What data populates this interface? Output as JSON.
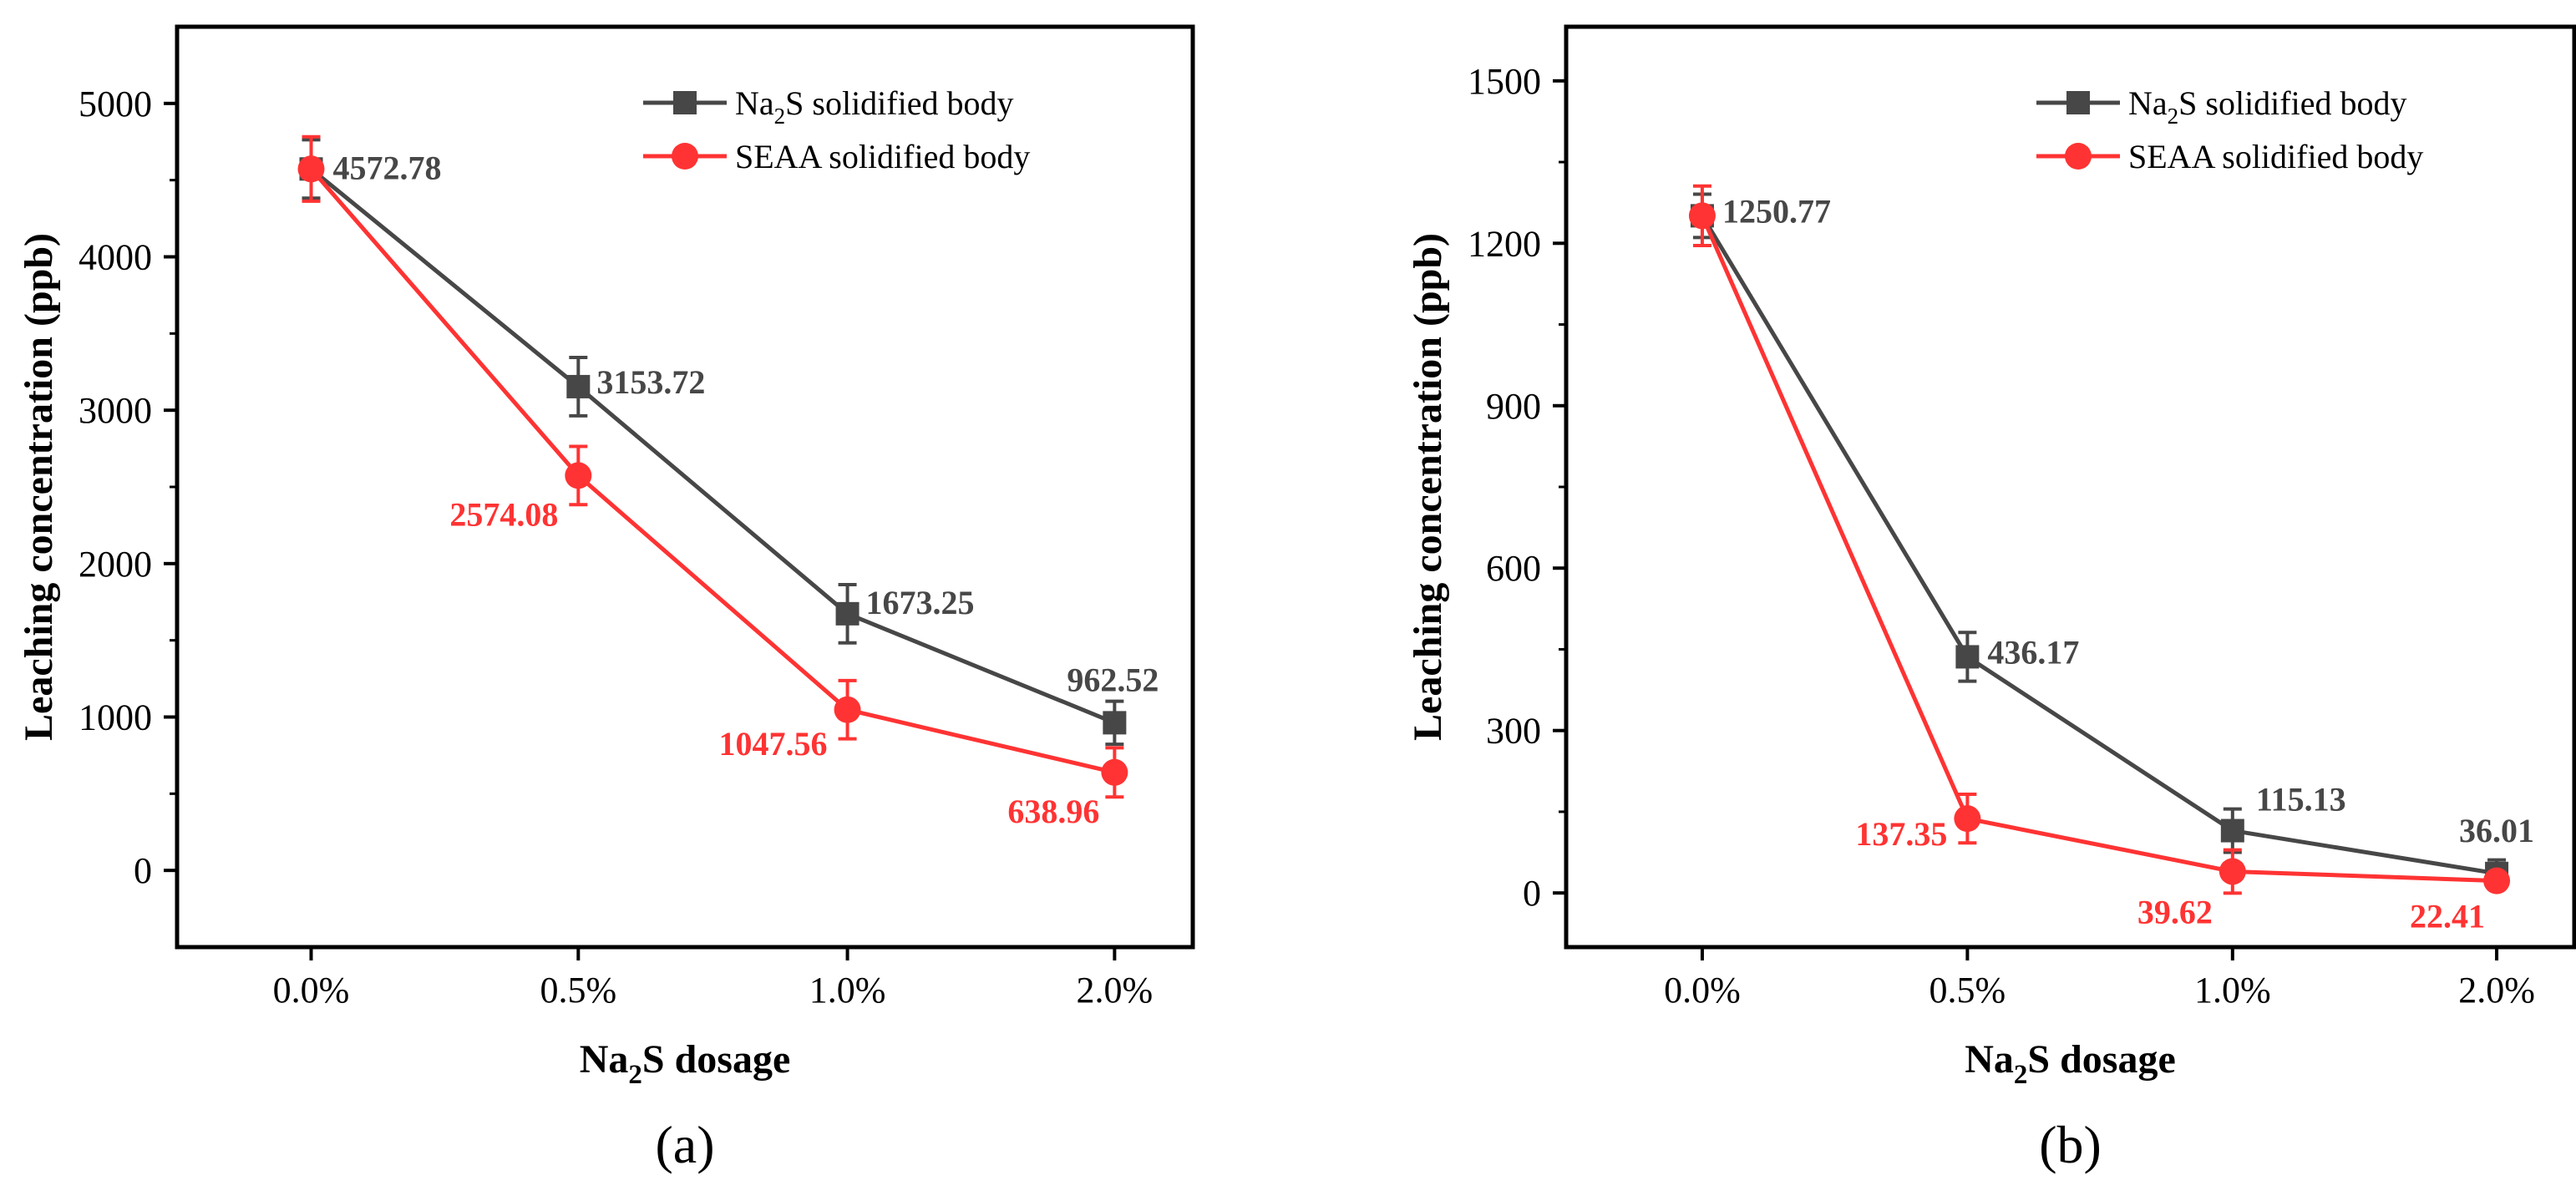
{
  "colors": {
    "na2s_series": "#474747",
    "seaa_series": "#ff3333",
    "axis": "#000000",
    "background": "#ffffff"
  },
  "chart_data": [
    {
      "panel_label": "(a)",
      "type": "line",
      "xlabel": "Na2S dosage",
      "ylabel": "Leaching concentration (ppb)",
      "categories": [
        "0.0%",
        "0.5%",
        "1.0%",
        "2.0%"
      ],
      "ylim": [
        -500,
        5500
      ],
      "yticks": [
        0,
        1000,
        2000,
        3000,
        4000,
        5000
      ],
      "legend_position": "top-right",
      "series": [
        {
          "name": "Na2S solidified body",
          "marker": "square",
          "values": [
            4572.78,
            3153.72,
            1673.25,
            962.52
          ],
          "errors": [
            190,
            190,
            190,
            140
          ],
          "labels": [
            "4572.78",
            "3153.72",
            "1673.25",
            "962.52"
          ]
        },
        {
          "name": "SEAA solidified body",
          "marker": "circle",
          "values": [
            4572.78,
            2574.08,
            1047.56,
            638.96
          ],
          "errors": [
            210,
            190,
            190,
            160
          ],
          "labels": [
            "",
            "2574.08",
            "1047.56",
            "638.96"
          ]
        }
      ]
    },
    {
      "panel_label": "(b)",
      "type": "line",
      "xlabel": "Na2S dosage",
      "ylabel": "Leaching concentration (ppb)",
      "categories": [
        "0.0%",
        "0.5%",
        "1.0%",
        "2.0%"
      ],
      "ylim": [
        -100,
        1600
      ],
      "yticks": [
        0,
        300,
        600,
        900,
        1200,
        1500
      ],
      "legend_position": "top-right",
      "series": [
        {
          "name": "Na2S solidified body",
          "marker": "square",
          "values": [
            1250.77,
            436.17,
            115.13,
            36.01
          ],
          "errors": [
            40,
            45,
            40,
            25
          ],
          "labels": [
            "1250.77",
            "436.17",
            "115.13",
            "36.01"
          ]
        },
        {
          "name": "SEAA solidified body",
          "marker": "circle",
          "values": [
            1250.77,
            137.35,
            39.62,
            22.41
          ],
          "errors": [
            55,
            45,
            40,
            15
          ],
          "labels": [
            "",
            "137.35",
            "39.62",
            "22.41"
          ]
        }
      ]
    }
  ]
}
